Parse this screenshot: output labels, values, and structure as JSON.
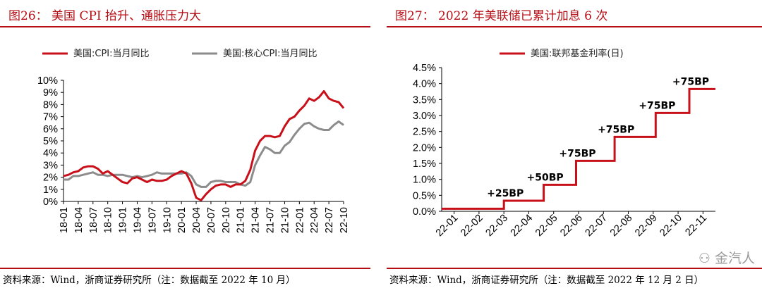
{
  "left": {
    "title": "图26：  美国 CPI 抬升、通胀压力大",
    "source": "资料来源：Wind，浙商证券研究所（注：数据截至 2022 年 10 月）",
    "chart_data": {
      "type": "line",
      "title": "美国 CPI 抬升、通胀压力大",
      "y_ticks": [
        "10%",
        "9%",
        "8%",
        "7%",
        "6%",
        "5%",
        "4%",
        "3%",
        "2%",
        "1%",
        "0%"
      ],
      "ylim": [
        0,
        10
      ],
      "x_ticks": [
        "18-01",
        "18-04",
        "18-07",
        "18-10",
        "19-01",
        "19-04",
        "19-07",
        "19-10",
        "20-01",
        "20-04",
        "20-07",
        "20-10",
        "21-01",
        "21-04",
        "21-07",
        "21-10",
        "22-01",
        "22-04",
        "22-07",
        "22-10"
      ],
      "series": [
        {
          "name": "美国:CPI:当月同比",
          "color": "#c8101a",
          "values": [
            2.1,
            2.2,
            2.4,
            2.5,
            2.8,
            2.9,
            2.9,
            2.7,
            2.3,
            2.5,
            2.2,
            1.9,
            1.6,
            1.5,
            1.9,
            2.0,
            1.8,
            1.6,
            1.8,
            1.7,
            1.7,
            1.8,
            2.1,
            2.3,
            2.5,
            2.3,
            1.5,
            0.3,
            0.1,
            0.6,
            1.0,
            1.3,
            1.4,
            1.4,
            1.2,
            1.4,
            1.4,
            1.7,
            2.6,
            4.2,
            5.0,
            5.4,
            5.4,
            5.3,
            5.4,
            6.2,
            6.8,
            7.0,
            7.5,
            7.9,
            8.5,
            8.3,
            8.6,
            9.1,
            8.5,
            8.3,
            8.2,
            7.7
          ]
        },
        {
          "name": "美国:核心CPI:当月同比",
          "color": "#8c8c8c",
          "values": [
            1.8,
            1.8,
            2.1,
            2.1,
            2.2,
            2.3,
            2.4,
            2.2,
            2.2,
            2.1,
            2.2,
            2.2,
            2.2,
            2.1,
            2.0,
            2.1,
            2.0,
            2.1,
            2.2,
            2.4,
            2.3,
            2.3,
            2.3,
            2.3,
            2.3,
            2.4,
            2.1,
            1.4,
            1.2,
            1.2,
            1.6,
            1.7,
            1.7,
            1.6,
            1.6,
            1.6,
            1.4,
            1.3,
            1.6,
            3.0,
            3.8,
            4.5,
            4.3,
            4.0,
            4.0,
            4.6,
            4.9,
            5.5,
            6.0,
            6.4,
            6.5,
            6.2,
            6.0,
            5.9,
            5.9,
            6.3,
            6.6,
            6.3
          ]
        }
      ]
    }
  },
  "right": {
    "title": "图27：  2022 年美联储已累计加息 6 次",
    "source": "资料来源：Wind，浙商证券研究所（注：数据截至 2022 年 12 月 2 日）",
    "watermark": "金汽人",
    "chart_data": {
      "type": "line",
      "title": "2022 年美联储已累计加息 6 次",
      "y_ticks": [
        "4.5%",
        "4.0%",
        "3.5%",
        "3.0%",
        "2.5%",
        "2.0%",
        "1.5%",
        "1.0%",
        "0.5%",
        "0.0%"
      ],
      "ylim": [
        0,
        4.5
      ],
      "x_ticks": [
        "22-01",
        "22-02",
        "22-03",
        "22-04",
        "22-05",
        "22-06",
        "22-07",
        "22-08",
        "22-09",
        "22-10",
        "22-11"
      ],
      "series": [
        {
          "name": "美国:联邦基金利率(日)",
          "color": "#c8101a",
          "steps": [
            {
              "from": 0.0,
              "to": 2.5,
              "value": 0.08
            },
            {
              "from": 2.5,
              "to": 4.1,
              "value": 0.33
            },
            {
              "from": 4.1,
              "to": 5.4,
              "value": 0.83
            },
            {
              "from": 5.4,
              "to": 6.95,
              "value": 1.58
            },
            {
              "from": 6.95,
              "to": 8.6,
              "value": 2.33
            },
            {
              "from": 8.6,
              "to": 9.95,
              "value": 3.08
            },
            {
              "from": 9.95,
              "to": 11.0,
              "value": 3.83
            }
          ]
        }
      ],
      "annotations": [
        "+25BP",
        "+50BP",
        "+75BP",
        "+75BP",
        "+75BP",
        "+75BP"
      ]
    }
  }
}
